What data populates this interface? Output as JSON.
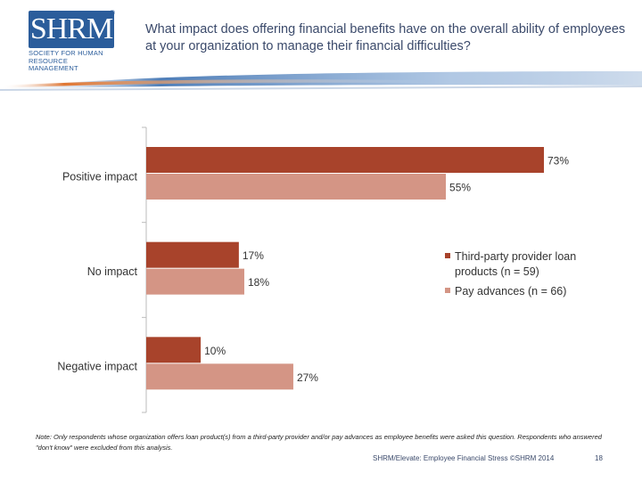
{
  "logo": {
    "letters": "SHRM",
    "registered": "®",
    "line1": "Society for Human",
    "line2": "Resource Management"
  },
  "title": "What impact does offering financial benefits have on the overall ability of employees at your organization to manage their financial difficulties?",
  "colors": {
    "series1": "#a8432b",
    "series2": "#d49585",
    "axis": "#bbbbbb",
    "banner_blue": "#3a6fb0",
    "banner_orange": "#e06b1f"
  },
  "chart_data": {
    "type": "bar",
    "orientation": "horizontal",
    "categories": [
      "Positive impact",
      "No impact",
      "Negative impact"
    ],
    "series": [
      {
        "name": "Third-party provider loan products (n = 59)",
        "values": [
          73,
          17,
          10
        ]
      },
      {
        "name": "Pay advances (n = 66)",
        "values": [
          55,
          18,
          27
        ]
      }
    ],
    "value_labels": [
      [
        "73%",
        "17%",
        "10%"
      ],
      [
        "55%",
        "18%",
        "27%"
      ]
    ],
    "xlim": [
      0,
      73
    ],
    "legend_position": "right",
    "legend": [
      {
        "line1": "Third-party provider loan",
        "line2": "products (n = 59)"
      },
      {
        "line1": "Pay advances (n = 66)",
        "line2": ""
      }
    ]
  },
  "note": "Note: Only respondents whose organization offers loan product(s) from a third-party provider and/or pay advances as employee benefits were asked this question. Respondents who answered \"don't know\" were excluded from this analysis.",
  "footer": "SHRM/Elevate: Employee Financial Stress ©SHRM 2014",
  "page_number": "18"
}
